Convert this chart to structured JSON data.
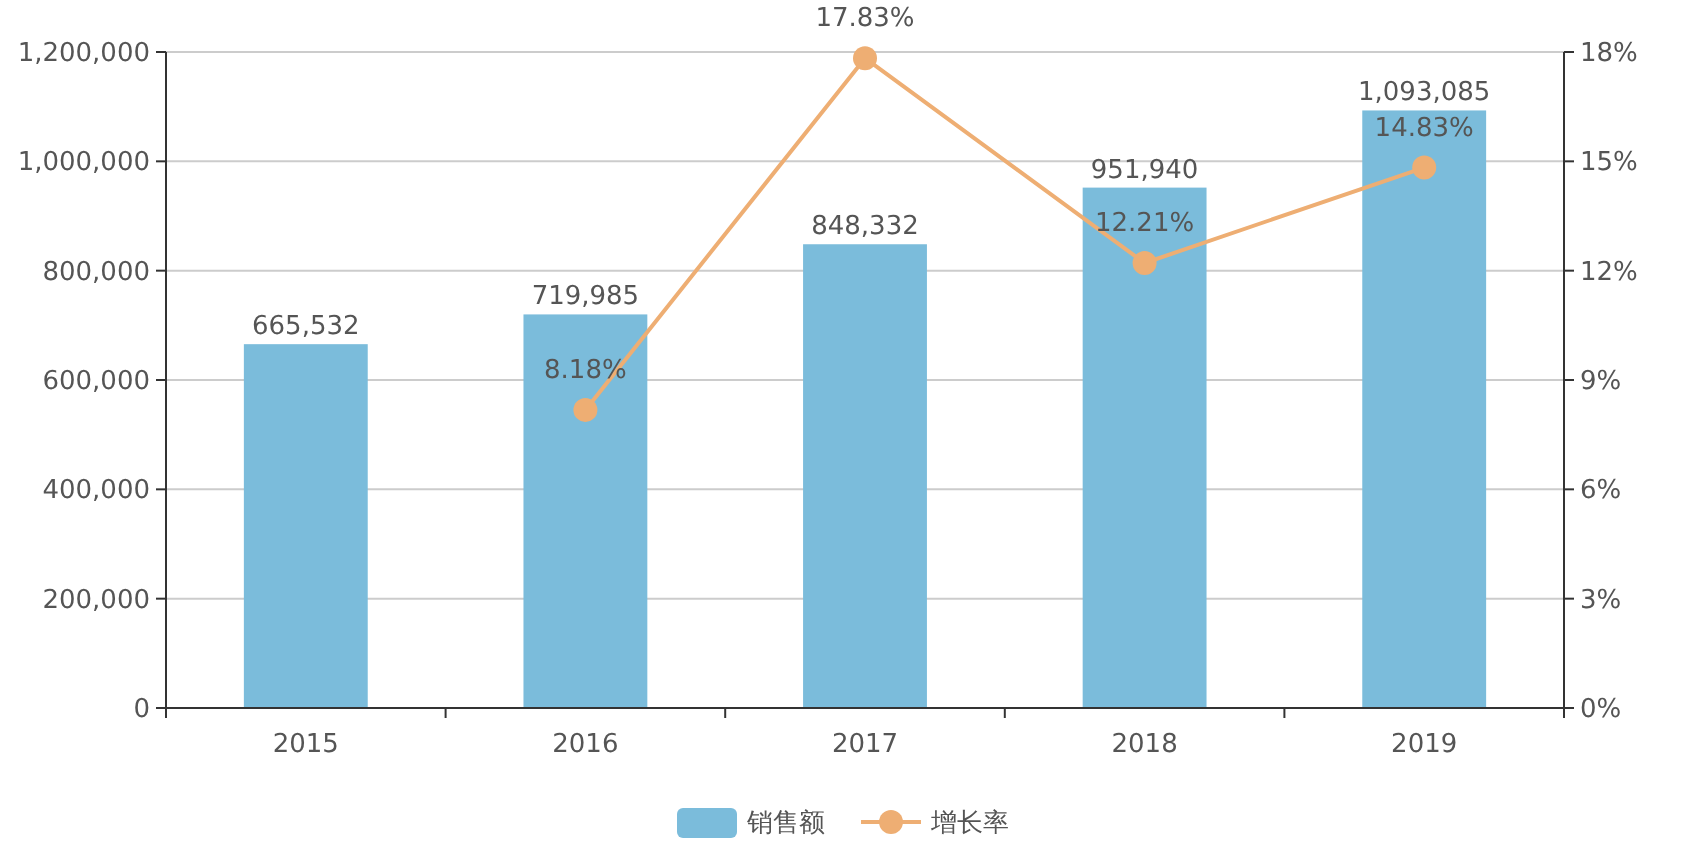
{
  "chart_data": {
    "type": "bar",
    "categories": [
      "2015",
      "2016",
      "2017",
      "2018",
      "2019"
    ],
    "series": [
      {
        "name": "销售额",
        "color": "#7bbcdb",
        "values": [
          665532,
          719985,
          848332,
          951940,
          1093085
        ],
        "value_labels": [
          "665,532",
          "719,985",
          "848,332",
          "951,940",
          "1,093,085"
        ]
      },
      {
        "name": "增长率",
        "type": "line",
        "axis": "y2",
        "color": "#eeae73",
        "values": [
          null,
          8.18,
          17.83,
          12.21,
          14.83
        ],
        "value_labels": [
          null,
          "8.18%",
          "17.83%",
          "12.21%",
          "14.83%"
        ]
      }
    ],
    "ylim": [
      0,
      1200000
    ],
    "yticks": [
      0,
      {
        "value": 200000,
        "label": "200,000"
      },
      {
        "value": 400000,
        "label": "400,000"
      },
      {
        "value": 600000,
        "label": "600,000"
      },
      {
        "value": 800000,
        "label": "800,000"
      },
      {
        "value": 1000000,
        "label": "1,000,000"
      },
      {
        "value": 1200000,
        "label": "1,200,000"
      }
    ],
    "y2lim": [
      0,
      18
    ],
    "y2ticks": [
      {
        "value": 0,
        "label": "0%"
      },
      {
        "value": 3,
        "label": "3%"
      },
      {
        "value": 6,
        "label": "6%"
      },
      {
        "value": 9,
        "label": "9%"
      },
      {
        "value": 12,
        "label": "12%"
      },
      {
        "value": 15,
        "label": "15%"
      },
      {
        "value": 18,
        "label": "18%"
      }
    ],
    "grid": "y",
    "legend": "bottom",
    "marker": "circle"
  }
}
